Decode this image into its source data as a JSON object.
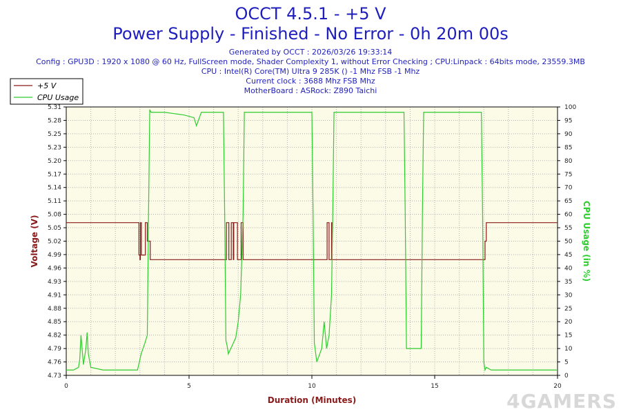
{
  "title": "OCCT 4.5.1 - +5 V",
  "subtitle": "Power Supply - Finished - No Error - 0h 20m 00s",
  "info_lines": [
    "Generated by OCCT : 2026/03/26 19:33:14",
    "Config : GPU3D : 1920 x 1080 @ 60 Hz, FullScreen mode, Shader Complexity 1, without Error Checking ; CPU:Linpack : 64bits mode, 23559.3MB",
    "CPU : Intel(R) Core(TM) Ultra 9 285K () -1 Mhz FSB -1 Mhz",
    "Current clock : 3688 Mhz FSB  Mhz",
    "MotherBoard : ASRock: Z890 Taichi"
  ],
  "watermark": "4GAMERS",
  "colors": {
    "title": "#1e1ebe",
    "voltage": "#8b1a1a",
    "cpu": "#2ecc2e",
    "grid": "#b0b0b0"
  },
  "chart_data": {
    "type": "line",
    "xlabel": "Duration (Minutes)",
    "ylabel_left": "Voltage (V)",
    "ylabel_right": "CPU Usage (in %)",
    "xlim": [
      0,
      20
    ],
    "ylim_left": [
      4.73,
      5.31
    ],
    "ylim_right": [
      0,
      100
    ],
    "x_ticks": [
      0,
      5,
      10,
      15,
      20
    ],
    "y_ticks_left": [
      "4.73",
      "4.76",
      "4.79",
      "4.82",
      "4.85",
      "4.88",
      "4.91",
      "4.93",
      "4.96",
      "4.99",
      "5.02",
      "5.05",
      "5.08",
      "5.11",
      "5.14",
      "5.17",
      "5.20",
      "5.23",
      "5.25",
      "5.28",
      "5.31"
    ],
    "y_ticks_right": [
      0,
      5,
      10,
      15,
      20,
      25,
      30,
      35,
      40,
      45,
      50,
      55,
      60,
      65,
      70,
      75,
      80,
      85,
      90,
      95,
      100
    ],
    "grid": true,
    "legend_position": "top-left",
    "series": [
      {
        "name": "+5 V",
        "axis": "left",
        "x": [
          0,
          2.95,
          2.96,
          3.0,
          3.02,
          3.05,
          3.06,
          3.2,
          3.22,
          3.28,
          3.3,
          3.4,
          3.42,
          6.5,
          6.52,
          6.6,
          6.62,
          6.7,
          6.72,
          6.8,
          6.82,
          6.95,
          6.97,
          7.1,
          7.12,
          7.18,
          7.2,
          10.6,
          10.62,
          10.7,
          10.72,
          10.8,
          10.82,
          10.9,
          10.92,
          17.0,
          17.05,
          17.1,
          20.0
        ],
        "values": [
          5.06,
          5.06,
          4.99,
          4.98,
          5.06,
          5.06,
          4.99,
          4.99,
          5.06,
          5.06,
          5.02,
          5.02,
          4.98,
          4.98,
          5.06,
          5.06,
          4.98,
          4.98,
          5.06,
          4.98,
          5.06,
          5.06,
          4.98,
          4.98,
          5.06,
          5.06,
          4.98,
          4.98,
          5.06,
          4.98,
          4.98,
          5.06,
          4.98,
          4.98,
          4.98,
          4.98,
          5.02,
          5.06,
          5.06
        ]
      },
      {
        "name": "CPU Usage",
        "axis": "right",
        "x": [
          0,
          0.3,
          0.5,
          0.55,
          0.6,
          0.7,
          0.8,
          0.85,
          0.9,
          1.0,
          1.5,
          2.0,
          2.5,
          2.9,
          3.05,
          3.2,
          3.3,
          3.35,
          3.4,
          3.45,
          3.5,
          4.0,
          4.8,
          5.2,
          5.3,
          5.5,
          6.0,
          6.4,
          6.45,
          6.5,
          6.55,
          6.6,
          6.7,
          6.9,
          7.0,
          7.1,
          7.2,
          7.25,
          7.3,
          8.0,
          9.0,
          10.0,
          10.05,
          10.1,
          10.2,
          10.4,
          10.5,
          10.6,
          10.7,
          10.8,
          10.85,
          10.9,
          11.0,
          12.0,
          13.0,
          13.75,
          13.8,
          13.85,
          13.9,
          14.2,
          14.45,
          14.5,
          14.55,
          14.6,
          15.0,
          16.0,
          16.9,
          16.95,
          17.0,
          17.05,
          17.1,
          17.3,
          18.0,
          19.0,
          20.0
        ],
        "values": [
          2,
          2,
          3,
          6,
          15,
          4,
          10,
          16,
          8,
          3,
          2,
          2,
          2,
          2,
          8,
          12,
          15,
          60,
          99,
          98,
          98,
          98,
          97,
          96,
          93,
          98,
          98,
          98,
          60,
          13,
          11,
          8,
          10,
          14,
          20,
          30,
          60,
          98,
          98,
          98,
          98,
          98,
          60,
          12,
          5,
          10,
          20,
          10,
          15,
          30,
          60,
          98,
          98,
          98,
          98,
          98,
          60,
          10,
          10,
          10,
          10,
          60,
          98,
          98,
          98,
          98,
          98,
          60,
          5,
          2,
          3,
          2,
          2,
          2,
          2
        ]
      }
    ]
  }
}
